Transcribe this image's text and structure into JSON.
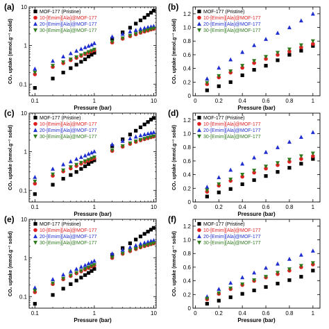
{
  "panel_letters": [
    "(a)",
    "(b)",
    "(c)",
    "(d)",
    "(e)",
    "(f)"
  ],
  "legend_entries": [
    {
      "label": "MOF-177 (Pristine)",
      "color": "#000000",
      "marker": "square"
    },
    {
      "label": "10-[Emim][Ala]@MOF-177",
      "color": "#e02020",
      "marker": "circle"
    },
    {
      "label": "20-[Emim][Ala]@MOF-177",
      "color": "#2030d0",
      "marker": "triangle"
    },
    {
      "label": "30-[Emim][Ala]@MOF-177",
      "color": "#2f7a1f",
      "marker": "triangle-down"
    }
  ],
  "chart_data": [
    {
      "panel": "(a)",
      "type": "scatter",
      "xscale": "log",
      "yscale": "log",
      "xlim": [
        0.08,
        11
      ],
      "ylim": [
        0.05,
        10
      ],
      "xticks": [
        0.1,
        1,
        10
      ],
      "xtick_labels": [
        "0.1",
        "1",
        "10"
      ],
      "yticks": [
        0.1,
        1,
        10
      ],
      "ytick_labels": [
        "0.1",
        "1",
        "10"
      ],
      "xlabel": "Pressure (bar)",
      "ylabel": "CO₂ uptake (mmol.g⁻¹ solid)",
      "legend": "top-left",
      "grid": false,
      "series": [
        {
          "name": "MOF-177 (Pristine)",
          "x": [
            0.1,
            0.2,
            0.3,
            0.4,
            0.5,
            0.6,
            0.7,
            0.8,
            0.9,
            1.0,
            2,
            3,
            4,
            5,
            6,
            7,
            8,
            9,
            10
          ],
          "y": [
            0.08,
            0.14,
            0.2,
            0.26,
            0.32,
            0.38,
            0.44,
            0.52,
            0.58,
            0.65,
            1.5,
            2.2,
            2.9,
            3.7,
            4.5,
            5.3,
            6.2,
            7.1,
            8.0
          ]
        },
        {
          "name": "10-[Emim][Ala]@MOF-177",
          "x": [
            0.1,
            0.2,
            0.3,
            0.4,
            0.5,
            0.6,
            0.7,
            0.8,
            0.9,
            1.0,
            2,
            3,
            4,
            5,
            6,
            7,
            8,
            9,
            10
          ],
          "y": [
            0.18,
            0.28,
            0.35,
            0.42,
            0.48,
            0.54,
            0.6,
            0.66,
            0.71,
            0.76,
            1.2,
            1.5,
            1.75,
            1.95,
            2.15,
            2.3,
            2.45,
            2.6,
            2.7
          ]
        },
        {
          "name": "20-[Emim][Ala]@MOF-177",
          "x": [
            0.1,
            0.2,
            0.3,
            0.4,
            0.5,
            0.6,
            0.7,
            0.8,
            0.9,
            1.0,
            2,
            3,
            4,
            5,
            6,
            7,
            8,
            9,
            10
          ],
          "y": [
            0.25,
            0.4,
            0.52,
            0.63,
            0.73,
            0.82,
            0.9,
            0.98,
            1.05,
            1.15,
            1.7,
            2.0,
            2.3,
            2.5,
            2.7,
            2.85,
            3.0,
            3.1,
            3.2
          ]
        },
        {
          "name": "30-[Emim][Ala]@MOF-177",
          "x": [
            0.1,
            0.2,
            0.3,
            0.4,
            0.5,
            0.6,
            0.7,
            0.8,
            0.9,
            1.0,
            2,
            3,
            4,
            5,
            6,
            7,
            8,
            9,
            10
          ],
          "y": [
            0.2,
            0.3,
            0.37,
            0.44,
            0.5,
            0.56,
            0.62,
            0.68,
            0.73,
            0.79,
            1.25,
            1.55,
            1.8,
            2.0,
            2.2,
            2.35,
            2.5,
            2.65,
            2.75
          ]
        }
      ]
    },
    {
      "panel": "(b)",
      "type": "scatter",
      "xscale": "linear",
      "yscale": "linear",
      "xlim": [
        -0.02,
        1.06
      ],
      "ylim": [
        0,
        1.3
      ],
      "xticks": [
        0,
        0.2,
        0.4,
        0.6,
        0.8,
        1
      ],
      "xtick_labels": [
        "0",
        "0.2",
        "0.4",
        "0.6",
        "0.8",
        "1"
      ],
      "yticks": [
        0,
        0.2,
        0.4,
        0.6,
        0.8,
        1.0,
        1.2
      ],
      "ytick_labels": [
        "0",
        "0.2",
        "0.4",
        "0.6",
        "0.8",
        "1.0",
        "1.2"
      ],
      "xlabel": "Pressure (bar)",
      "ylabel": "CO₂ uptake (mmol.g⁻¹ solid)",
      "legend": "top-left",
      "grid": false,
      "series": [
        {
          "name": "MOF-177 (Pristine)",
          "x": [
            0.1,
            0.2,
            0.3,
            0.4,
            0.5,
            0.6,
            0.7,
            0.8,
            0.9,
            1.0
          ],
          "y": [
            0.08,
            0.14,
            0.2,
            0.3,
            0.38,
            0.44,
            0.52,
            0.6,
            0.66,
            0.73
          ]
        },
        {
          "name": "10-[Emim][Ala]@MOF-177",
          "x": [
            0.1,
            0.2,
            0.3,
            0.4,
            0.5,
            0.6,
            0.7,
            0.8,
            0.9,
            1.0
          ],
          "y": [
            0.17,
            0.27,
            0.34,
            0.41,
            0.48,
            0.54,
            0.6,
            0.65,
            0.71,
            0.76
          ]
        },
        {
          "name": "20-[Emim][Ala]@MOF-177",
          "x": [
            0.1,
            0.2,
            0.3,
            0.4,
            0.5,
            0.6,
            0.7,
            0.8,
            0.9,
            1.0
          ],
          "y": [
            0.25,
            0.41,
            0.53,
            0.64,
            0.74,
            0.83,
            0.92,
            1.0,
            1.1,
            1.2
          ]
        },
        {
          "name": "30-[Emim][Ala]@MOF-177",
          "x": [
            0.1,
            0.2,
            0.3,
            0.4,
            0.5,
            0.6,
            0.7,
            0.8,
            0.9,
            1.0
          ],
          "y": [
            0.19,
            0.29,
            0.36,
            0.44,
            0.51,
            0.57,
            0.63,
            0.68,
            0.74,
            0.8
          ]
        }
      ]
    },
    {
      "panel": "(c)",
      "type": "scatter",
      "xscale": "log",
      "yscale": "log",
      "xlim": [
        0.08,
        11
      ],
      "ylim": [
        0.05,
        10
      ],
      "xticks": [
        0.1,
        1,
        10
      ],
      "xtick_labels": [
        "0.1",
        "1",
        "10"
      ],
      "yticks": [
        0.1,
        1,
        10
      ],
      "ytick_labels": [
        "0.1",
        "1",
        "10"
      ],
      "xlabel": "Pressure (bar)",
      "ylabel": "CO₂ uptake (mmol.g⁻¹ solid)",
      "legend": "top-left",
      "grid": false,
      "series": [
        {
          "name": "MOF-177 (Pristine)",
          "x": [
            0.1,
            0.2,
            0.3,
            0.4,
            0.5,
            0.6,
            0.7,
            0.8,
            0.9,
            1.0,
            2,
            3,
            4,
            5,
            6,
            7,
            8,
            9,
            10
          ],
          "y": [
            0.08,
            0.14,
            0.2,
            0.25,
            0.3,
            0.36,
            0.42,
            0.48,
            0.55,
            0.6,
            1.4,
            2.1,
            2.8,
            3.5,
            4.3,
            5.1,
            5.9,
            6.8,
            7.5
          ]
        },
        {
          "name": "10-[Emim][Ala]@MOF-177",
          "x": [
            0.1,
            0.2,
            0.3,
            0.4,
            0.5,
            0.6,
            0.7,
            0.8,
            0.9,
            1.0,
            2,
            3,
            4,
            5,
            6,
            7,
            8,
            9,
            10
          ],
          "y": [
            0.15,
            0.24,
            0.31,
            0.37,
            0.43,
            0.49,
            0.54,
            0.59,
            0.64,
            0.68,
            1.05,
            1.35,
            1.6,
            1.8,
            1.98,
            2.12,
            2.25,
            2.38,
            2.48
          ]
        },
        {
          "name": "20-[Emim][Ala]@MOF-177",
          "x": [
            0.1,
            0.2,
            0.3,
            0.4,
            0.5,
            0.6,
            0.7,
            0.8,
            0.9,
            1.0,
            2,
            3,
            4,
            5,
            6,
            7,
            8,
            9,
            10
          ],
          "y": [
            0.22,
            0.36,
            0.47,
            0.56,
            0.65,
            0.73,
            0.8,
            0.88,
            0.95,
            1.02,
            1.55,
            1.9,
            2.2,
            2.45,
            2.65,
            2.82,
            2.96,
            3.08,
            3.2
          ]
        },
        {
          "name": "30-[Emim][Ala]@MOF-177",
          "x": [
            0.1,
            0.2,
            0.3,
            0.4,
            0.5,
            0.6,
            0.7,
            0.8,
            0.9,
            1.0,
            2,
            3,
            4,
            5,
            6,
            7,
            8,
            9,
            10
          ],
          "y": [
            0.17,
            0.26,
            0.33,
            0.4,
            0.46,
            0.52,
            0.57,
            0.62,
            0.67,
            0.72,
            1.1,
            1.4,
            1.65,
            1.85,
            2.02,
            2.17,
            2.3,
            2.42,
            2.52
          ]
        }
      ]
    },
    {
      "panel": "(d)",
      "type": "scatter",
      "xscale": "linear",
      "yscale": "linear",
      "xlim": [
        -0.02,
        1.06
      ],
      "ylim": [
        0,
        1.3
      ],
      "xticks": [
        0,
        0.2,
        0.4,
        0.6,
        0.8,
        1
      ],
      "xtick_labels": [
        "0",
        "0.2",
        "0.4",
        "0.6",
        "0.8",
        "1"
      ],
      "yticks": [
        0,
        0.2,
        0.4,
        0.6,
        0.8,
        1.0,
        1.2
      ],
      "ytick_labels": [
        "0",
        "0.2",
        "0.4",
        "0.6",
        "0.8",
        "1.0",
        "1.2"
      ],
      "xlabel": "Pressure (bar)",
      "ylabel": "CO₂ uptake (mmol.g⁻¹ solid)",
      "legend": "top-left",
      "grid": false,
      "series": [
        {
          "name": "MOF-177 (Pristine)",
          "x": [
            0.1,
            0.2,
            0.3,
            0.4,
            0.5,
            0.6,
            0.7,
            0.8,
            0.9,
            1.0
          ],
          "y": [
            0.08,
            0.14,
            0.19,
            0.26,
            0.32,
            0.38,
            0.44,
            0.5,
            0.56,
            0.63
          ]
        },
        {
          "name": "10-[Emim][Ala]@MOF-177",
          "x": [
            0.1,
            0.2,
            0.3,
            0.4,
            0.5,
            0.6,
            0.7,
            0.8,
            0.9,
            1.0
          ],
          "y": [
            0.15,
            0.24,
            0.31,
            0.37,
            0.43,
            0.49,
            0.54,
            0.59,
            0.63,
            0.67
          ]
        },
        {
          "name": "20-[Emim][Ala]@MOF-177",
          "x": [
            0.1,
            0.2,
            0.3,
            0.4,
            0.5,
            0.6,
            0.7,
            0.8,
            0.9,
            1.0
          ],
          "y": [
            0.22,
            0.36,
            0.47,
            0.56,
            0.65,
            0.73,
            0.8,
            0.88,
            0.95,
            1.02
          ]
        },
        {
          "name": "30-[Emim][Ala]@MOF-177",
          "x": [
            0.1,
            0.2,
            0.3,
            0.4,
            0.5,
            0.6,
            0.7,
            0.8,
            0.9,
            1.0
          ],
          "y": [
            0.17,
            0.26,
            0.33,
            0.4,
            0.46,
            0.52,
            0.57,
            0.62,
            0.67,
            0.71
          ]
        }
      ]
    },
    {
      "panel": "(e)",
      "type": "scatter",
      "xscale": "log",
      "yscale": "log",
      "xlim": [
        0.08,
        11
      ],
      "ylim": [
        0.05,
        10
      ],
      "xticks": [
        0.1,
        1,
        10
      ],
      "xtick_labels": [
        "0.1",
        "1",
        "10"
      ],
      "yticks": [
        0.1,
        1,
        10
      ],
      "ytick_labels": [
        "0.1",
        "1",
        "10"
      ],
      "xlabel": "Pressure (bar)",
      "ylabel": "CO₂ uptake (mmol.g⁻¹ solid)",
      "legend": "top-left",
      "grid": false,
      "series": [
        {
          "name": "MOF-177 (Pristine)",
          "x": [
            0.1,
            0.2,
            0.3,
            0.4,
            0.5,
            0.6,
            0.7,
            0.8,
            0.9,
            1.0,
            2,
            3,
            4,
            5,
            6,
            7,
            8,
            9,
            10
          ],
          "y": [
            0.065,
            0.11,
            0.16,
            0.21,
            0.26,
            0.31,
            0.36,
            0.41,
            0.46,
            0.52,
            1.2,
            1.8,
            2.4,
            3.0,
            3.6,
            4.2,
            4.8,
            5.4,
            6.0
          ]
        },
        {
          "name": "10-[Emim][Ala]@MOF-177",
          "x": [
            0.1,
            0.2,
            0.3,
            0.4,
            0.5,
            0.6,
            0.7,
            0.8,
            0.9,
            1.0,
            2,
            3,
            4,
            5,
            6,
            7,
            8,
            9,
            10
          ],
          "y": [
            0.13,
            0.21,
            0.28,
            0.34,
            0.4,
            0.45,
            0.5,
            0.55,
            0.6,
            0.64,
            1.0,
            1.28,
            1.5,
            1.7,
            1.88,
            2.02,
            2.15,
            2.27,
            2.38
          ]
        },
        {
          "name": "20-[Emim][Ala]@MOF-177",
          "x": [
            0.1,
            0.2,
            0.3,
            0.4,
            0.5,
            0.6,
            0.7,
            0.8,
            0.9,
            1.0,
            2,
            3,
            4,
            5,
            6,
            7,
            8,
            9,
            10
          ],
          "y": [
            0.17,
            0.28,
            0.37,
            0.45,
            0.52,
            0.59,
            0.65,
            0.72,
            0.78,
            0.84,
            1.3,
            1.62,
            1.9,
            2.12,
            2.32,
            2.48,
            2.62,
            2.75,
            2.86
          ]
        },
        {
          "name": "30-[Emim][Ala]@MOF-177",
          "x": [
            0.1,
            0.2,
            0.3,
            0.4,
            0.5,
            0.6,
            0.7,
            0.8,
            0.9,
            1.0,
            2,
            3,
            4,
            5,
            6,
            7,
            8,
            9,
            10
          ],
          "y": [
            0.14,
            0.22,
            0.29,
            0.35,
            0.41,
            0.46,
            0.52,
            0.57,
            0.62,
            0.66,
            1.03,
            1.3,
            1.53,
            1.72,
            1.9,
            2.04,
            2.17,
            2.29,
            2.4
          ]
        }
      ]
    },
    {
      "panel": "(f)",
      "type": "scatter",
      "xscale": "linear",
      "yscale": "linear",
      "xlim": [
        -0.02,
        1.06
      ],
      "ylim": [
        0,
        1.3
      ],
      "xticks": [
        0,
        0.2,
        0.4,
        0.6,
        0.8,
        1
      ],
      "xtick_labels": [
        "0",
        "0.2",
        "0.4",
        "0.6",
        "0.8",
        "1"
      ],
      "yticks": [
        0,
        0.2,
        0.4,
        0.6,
        0.8,
        1.0,
        1.2
      ],
      "ytick_labels": [
        "0",
        "0.2",
        "0.4",
        "0.6",
        "0.8",
        "1.0",
        "1.2"
      ],
      "xlabel": "Pressure (bar)",
      "ylabel": "CO₂ uptake (mmol.g⁻¹ solid)",
      "legend": "top-left",
      "grid": false,
      "series": [
        {
          "name": "MOF-177 (Pristine)",
          "x": [
            0.1,
            0.2,
            0.3,
            0.4,
            0.5,
            0.6,
            0.7,
            0.8,
            0.9,
            1.0
          ],
          "y": [
            0.065,
            0.11,
            0.16,
            0.21,
            0.26,
            0.31,
            0.36,
            0.41,
            0.46,
            0.55
          ]
        },
        {
          "name": "10-[Emim][Ala]@MOF-177",
          "x": [
            0.1,
            0.2,
            0.3,
            0.4,
            0.5,
            0.6,
            0.7,
            0.8,
            0.9,
            1.0
          ],
          "y": [
            0.13,
            0.21,
            0.28,
            0.34,
            0.4,
            0.45,
            0.5,
            0.55,
            0.6,
            0.64
          ]
        },
        {
          "name": "20-[Emim][Ala]@MOF-177",
          "x": [
            0.1,
            0.2,
            0.3,
            0.4,
            0.5,
            0.6,
            0.7,
            0.8,
            0.9,
            1.0
          ],
          "y": [
            0.17,
            0.28,
            0.37,
            0.45,
            0.52,
            0.59,
            0.65,
            0.72,
            0.78,
            0.84
          ]
        },
        {
          "name": "30-[Emim][Ala]@MOF-177",
          "x": [
            0.1,
            0.2,
            0.3,
            0.4,
            0.5,
            0.6,
            0.7,
            0.8,
            0.9,
            1.0
          ],
          "y": [
            0.14,
            0.22,
            0.29,
            0.35,
            0.41,
            0.46,
            0.52,
            0.57,
            0.62,
            0.66
          ]
        }
      ]
    }
  ]
}
